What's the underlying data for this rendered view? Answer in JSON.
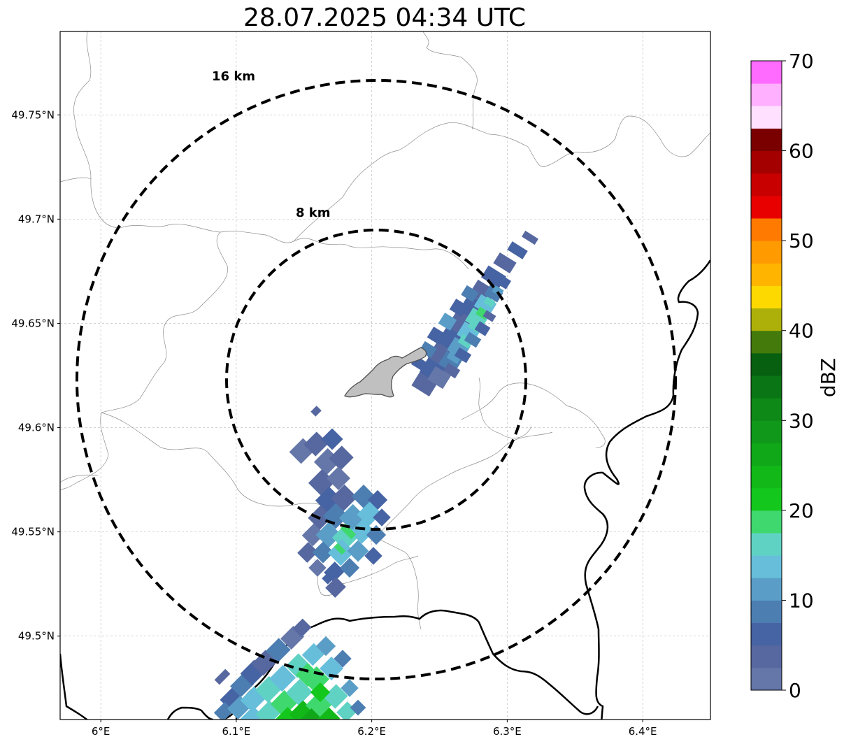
{
  "title": "28.07.2025 04:34 UTC",
  "map": {
    "x_ticks": [
      {
        "lon": 6.0,
        "label": "6°E"
      },
      {
        "lon": 6.1,
        "label": "6.1°E"
      },
      {
        "lon": 6.2,
        "label": "6.2°E"
      },
      {
        "lon": 6.3,
        "label": "6.3°E"
      },
      {
        "lon": 6.4,
        "label": "6.4°E"
      }
    ],
    "y_ticks": [
      {
        "lat": 49.75,
        "label": "49.75°N"
      },
      {
        "lat": 49.7,
        "label": "49.7°N"
      },
      {
        "lat": 49.65,
        "label": "49.65°N"
      },
      {
        "lat": 49.6,
        "label": "49.6°N"
      },
      {
        "lat": 49.55,
        "label": "49.55°N"
      },
      {
        "lat": 49.5,
        "label": "49.5°N"
      }
    ],
    "extent": {
      "lon_min": 5.97,
      "lon_max": 6.45,
      "lat_min": 49.46,
      "lat_max": 49.79
    },
    "grid": true,
    "radar_center": {
      "lon": 6.2,
      "lat": 49.623
    },
    "range_rings": [
      {
        "label": "8 km",
        "radius_km": 8
      },
      {
        "label": "16 km",
        "radius_km": 16
      }
    ]
  },
  "colorbar": {
    "label": "dBZ",
    "ticks": [
      "0",
      "10",
      "20",
      "30",
      "40",
      "50",
      "60",
      "70"
    ],
    "min": 0,
    "max": 70,
    "step": 2.5,
    "colors": [
      "#6577a8",
      "#56689f",
      "#4663a3",
      "#4c7eb2",
      "#5a9ec7",
      "#66bedb",
      "#60d2c4",
      "#3fd86e",
      "#14c71c",
      "#12b817",
      "#10a818",
      "#0f981a",
      "#0e8817",
      "#0a7515",
      "#075f10",
      "#447a0c",
      "#adb009",
      "#fed900",
      "#ffb500",
      "#ff9a00",
      "#ff7a00",
      "#e80000",
      "#c80000",
      "#a50000",
      "#7a0000",
      "#ffe0ff",
      "#ffb0ff",
      "#ff6aff",
      "#f130f1"
    ]
  },
  "chart_data": {
    "type": "heatmap",
    "title": "28.07.2025 04:34 UTC",
    "colorbar_label": "dBZ",
    "colorbar_range": [
      0,
      70
    ],
    "x_range": [
      5.97,
      6.45
    ],
    "y_range": [
      49.46,
      49.79
    ]
  }
}
